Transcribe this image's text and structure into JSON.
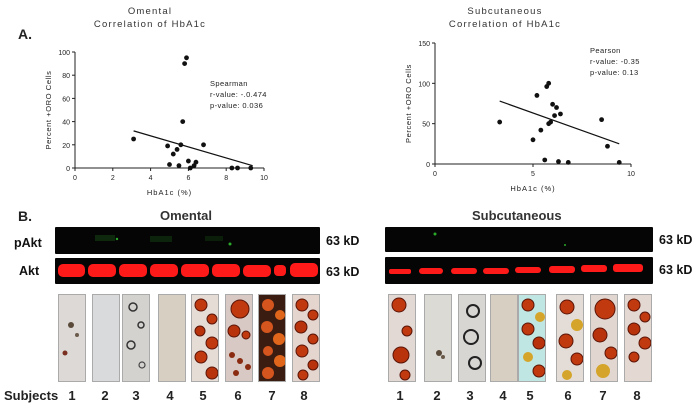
{
  "panels": {
    "a": "A.",
    "b": "B."
  },
  "chart_data": [
    {
      "type": "scatter",
      "title": "Omental",
      "subtitle": "Correlation of HbA1c",
      "xlabel": "HbA1c (%)",
      "ylabel": "Percent +ORO Cells",
      "xlim": [
        0,
        10
      ],
      "ylim": [
        0,
        100
      ],
      "xticks": [
        "0",
        "2",
        "4",
        "6",
        "8",
        "10"
      ],
      "yticks": [
        "0",
        "20",
        "40",
        "60",
        "80",
        "100"
      ],
      "grid": false,
      "stats": [
        "Spearman",
        "r-value: -.0.474",
        "p-value: 0.036"
      ],
      "points": [
        {
          "x": 3.1,
          "y": 25
        },
        {
          "x": 4.9,
          "y": 19
        },
        {
          "x": 5.0,
          "y": 3
        },
        {
          "x": 5.2,
          "y": 12
        },
        {
          "x": 5.4,
          "y": 16
        },
        {
          "x": 5.5,
          "y": 2
        },
        {
          "x": 5.6,
          "y": 20
        },
        {
          "x": 5.7,
          "y": 40
        },
        {
          "x": 5.8,
          "y": 90
        },
        {
          "x": 5.9,
          "y": 95
        },
        {
          "x": 6.0,
          "y": 6
        },
        {
          "x": 6.1,
          "y": 0
        },
        {
          "x": 6.3,
          "y": 2
        },
        {
          "x": 6.4,
          "y": 5
        },
        {
          "x": 6.8,
          "y": 20
        },
        {
          "x": 8.3,
          "y": 0
        },
        {
          "x": 8.6,
          "y": 0
        },
        {
          "x": 9.3,
          "y": 0
        }
      ],
      "trendline": [
        {
          "x": 3.1,
          "y": 32
        },
        {
          "x": 9.4,
          "y": 2
        }
      ]
    },
    {
      "type": "scatter",
      "title": "Subcutaneous",
      "subtitle": "Correlation of HbA1c",
      "xlabel": "HbA1c (%)",
      "ylabel": "Percent +ORO Cells",
      "xlim": [
        0,
        10
      ],
      "ylim": [
        0,
        150
      ],
      "xticks": [
        "0",
        "5",
        "10"
      ],
      "yticks": [
        "0",
        "50",
        "100",
        "150"
      ],
      "grid": false,
      "stats": [
        "Pearson",
        "r-value: -0.35",
        "p-value: 0.13"
      ],
      "points": [
        {
          "x": 3.3,
          "y": 52
        },
        {
          "x": 5.0,
          "y": 30
        },
        {
          "x": 5.2,
          "y": 85
        },
        {
          "x": 5.4,
          "y": 42
        },
        {
          "x": 5.6,
          "y": 5
        },
        {
          "x": 5.7,
          "y": 96
        },
        {
          "x": 5.8,
          "y": 100
        },
        {
          "x": 5.8,
          "y": 50
        },
        {
          "x": 5.9,
          "y": 52
        },
        {
          "x": 6.0,
          "y": 74
        },
        {
          "x": 6.1,
          "y": 60
        },
        {
          "x": 6.2,
          "y": 70
        },
        {
          "x": 6.3,
          "y": 3
        },
        {
          "x": 6.4,
          "y": 62
        },
        {
          "x": 6.8,
          "y": 2
        },
        {
          "x": 8.5,
          "y": 55
        },
        {
          "x": 8.8,
          "y": 22
        },
        {
          "x": 9.4,
          "y": 2
        }
      ],
      "trendline": [
        {
          "x": 3.3,
          "y": 78
        },
        {
          "x": 9.4,
          "y": 25
        }
      ]
    }
  ],
  "blots": {
    "omental": {
      "title": "Omental",
      "pakt_label": "pAkt",
      "akt_label": "Akt",
      "pakt_kd": "63 kD",
      "akt_kd": "63 kD"
    },
    "subcutaneous": {
      "title": "Subcutaneous",
      "pakt_kd": "63 kD",
      "akt_kd": "63 kD"
    }
  },
  "subjects": {
    "label": "Subjects",
    "numbers": [
      "1",
      "2",
      "3",
      "4",
      "5",
      "6",
      "7",
      "8"
    ]
  },
  "colors": {
    "blot_bg": "#050505",
    "pakt_signal": "#1f7a1f",
    "akt_band": "#ff1a1a",
    "lipid": "#c0390f",
    "lipid_dark": "#5a1508",
    "tile_bg": "#e4e2df"
  }
}
